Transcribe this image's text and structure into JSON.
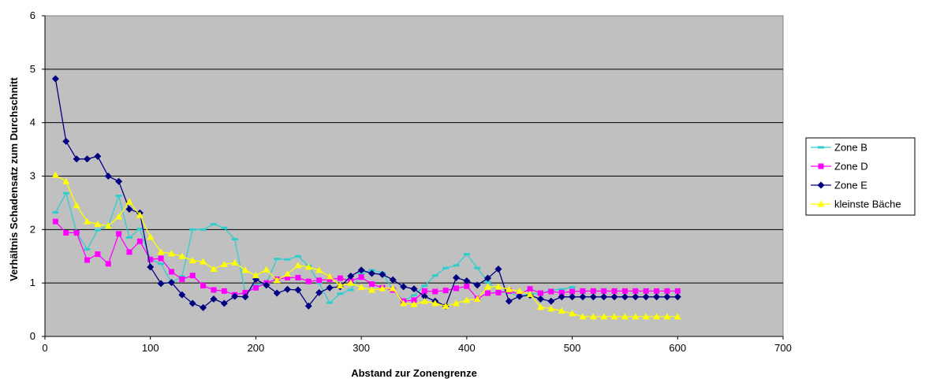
{
  "chart_data": {
    "type": "line",
    "title": "",
    "xlabel": "Abstand zur Zonengrenze",
    "ylabel": "Verhältnis Schadensatz zum Durchschnitt",
    "xlim": [
      0,
      700
    ],
    "ylim": [
      0,
      6
    ],
    "x_ticks": [
      "0",
      "100",
      "200",
      "300",
      "400",
      "500",
      "600",
      "700"
    ],
    "y_ticks": [
      "0",
      "1",
      "2",
      "3",
      "4",
      "5",
      "6"
    ],
    "grid": "horizontal",
    "legend_position": "right",
    "plot_background": "#c0c0c0",
    "series": [
      {
        "name": "Zone B",
        "color": "#33cccc",
        "marker": "dash",
        "x": [
          10,
          20,
          30,
          40,
          50,
          60,
          70,
          80,
          90,
          100,
          110,
          120,
          130,
          140,
          150,
          160,
          170,
          180,
          190,
          200,
          210,
          220,
          230,
          240,
          250,
          260,
          270,
          280,
          290,
          300,
          310,
          320,
          330,
          340,
          350,
          360,
          370,
          380,
          390,
          400,
          410,
          420,
          430,
          440,
          450,
          460,
          470,
          480,
          490,
          500
        ],
        "y": [
          2.32,
          2.68,
          1.95,
          1.63,
          1.99,
          2.06,
          2.63,
          1.85,
          2.01,
          1.44,
          1.36,
          1.01,
          1.12,
          2.0,
          2.0,
          2.1,
          2.03,
          1.82,
          0.82,
          0.96,
          0.99,
          1.45,
          1.44,
          1.5,
          1.32,
          1.0,
          0.63,
          0.8,
          0.87,
          1.17,
          1.24,
          1.19,
          0.87,
          0.67,
          0.77,
          0.95,
          1.14,
          1.28,
          1.33,
          1.54,
          1.28,
          1.02,
          0.84,
          0.82,
          0.75,
          0.8,
          0.8,
          0.87,
          0.88,
          0.92
        ]
      },
      {
        "name": "Zone D",
        "color": "#ff00ff",
        "marker": "square",
        "x": [
          10,
          20,
          30,
          40,
          50,
          60,
          70,
          80,
          90,
          100,
          110,
          120,
          130,
          140,
          150,
          160,
          170,
          180,
          190,
          200,
          210,
          220,
          230,
          240,
          250,
          260,
          270,
          280,
          290,
          300,
          310,
          320,
          330,
          340,
          350,
          360,
          370,
          380,
          390,
          400,
          410,
          420,
          430,
          440,
          450,
          460,
          470,
          480,
          490,
          500,
          510,
          520,
          530,
          540,
          550,
          560,
          570,
          580,
          590,
          600
        ],
        "y": [
          2.15,
          1.94,
          1.94,
          1.43,
          1.54,
          1.36,
          1.92,
          1.58,
          1.78,
          1.44,
          1.46,
          1.21,
          1.07,
          1.14,
          0.95,
          0.87,
          0.85,
          0.78,
          0.82,
          0.91,
          1.0,
          1.07,
          1.1,
          1.1,
          1.03,
          1.05,
          1.07,
          1.09,
          1.04,
          1.11,
          0.98,
          0.91,
          0.87,
          0.66,
          0.68,
          0.85,
          0.84,
          0.86,
          0.9,
          0.94,
          0.71,
          0.81,
          0.82,
          0.85,
          0.79,
          0.89,
          0.81,
          0.84,
          0.82,
          0.84,
          0.85,
          0.85,
          0.85,
          0.85,
          0.85,
          0.85,
          0.85,
          0.85,
          0.85,
          0.85
        ]
      },
      {
        "name": "Zone E",
        "color": "#000080",
        "marker": "diamond",
        "x": [
          10,
          20,
          30,
          40,
          50,
          60,
          70,
          80,
          90,
          100,
          110,
          120,
          130,
          140,
          150,
          160,
          170,
          180,
          190,
          200,
          210,
          220,
          230,
          240,
          250,
          260,
          270,
          280,
          290,
          300,
          310,
          320,
          330,
          340,
          350,
          360,
          370,
          380,
          390,
          400,
          410,
          420,
          430,
          440,
          450,
          460,
          470,
          480,
          490,
          500,
          510,
          520,
          530,
          540,
          550,
          560,
          570,
          580,
          590,
          600
        ],
        "y": [
          4.82,
          3.65,
          3.32,
          3.32,
          3.37,
          3.0,
          2.9,
          2.38,
          2.31,
          1.3,
          0.99,
          1.01,
          0.78,
          0.62,
          0.54,
          0.7,
          0.62,
          0.75,
          0.74,
          1.07,
          0.96,
          0.81,
          0.88,
          0.87,
          0.57,
          0.82,
          0.91,
          0.93,
          1.13,
          1.24,
          1.18,
          1.16,
          1.06,
          0.93,
          0.89,
          0.75,
          0.66,
          0.57,
          1.1,
          1.04,
          0.96,
          1.09,
          1.26,
          0.66,
          0.75,
          0.77,
          0.7,
          0.66,
          0.74,
          0.74,
          0.74,
          0.74,
          0.74,
          0.74,
          0.74,
          0.74,
          0.74,
          0.74,
          0.74,
          0.74
        ]
      },
      {
        "name": "kleinste Bäche",
        "color": "#ffff00",
        "marker": "triangle",
        "x": [
          10,
          20,
          30,
          40,
          50,
          60,
          70,
          80,
          90,
          100,
          110,
          120,
          130,
          140,
          150,
          160,
          170,
          180,
          190,
          200,
          210,
          220,
          230,
          240,
          250,
          260,
          270,
          280,
          290,
          300,
          310,
          320,
          330,
          340,
          350,
          360,
          370,
          380,
          390,
          400,
          410,
          420,
          430,
          440,
          450,
          460,
          470,
          480,
          490,
          500,
          510,
          520,
          530,
          540,
          550,
          560,
          570,
          580,
          590,
          600
        ],
        "y": [
          3.02,
          2.9,
          2.45,
          2.15,
          2.1,
          2.07,
          2.24,
          2.52,
          2.27,
          1.86,
          1.58,
          1.55,
          1.5,
          1.42,
          1.4,
          1.26,
          1.35,
          1.38,
          1.24,
          1.14,
          1.25,
          1.05,
          1.17,
          1.33,
          1.3,
          1.24,
          1.12,
          0.95,
          1.0,
          0.92,
          0.87,
          0.9,
          0.9,
          0.62,
          0.6,
          0.66,
          0.62,
          0.57,
          0.62,
          0.68,
          0.7,
          0.93,
          0.93,
          0.88,
          0.85,
          0.79,
          0.55,
          0.52,
          0.48,
          0.43,
          0.37,
          0.37,
          0.37,
          0.37,
          0.37,
          0.37,
          0.37,
          0.37,
          0.37,
          0.37
        ]
      }
    ]
  }
}
